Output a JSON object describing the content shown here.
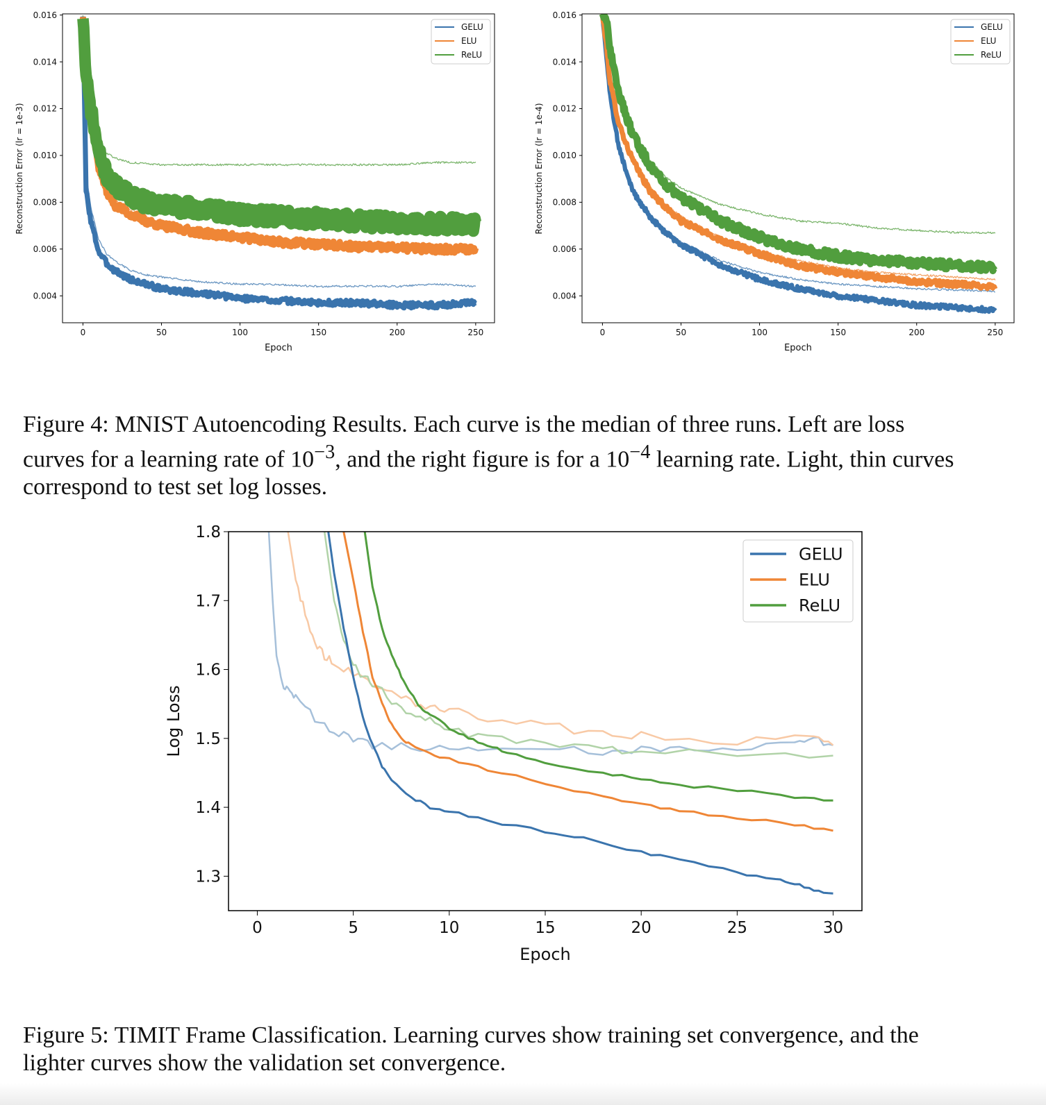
{
  "figure4": {
    "caption_prefix": "Figure 4:",
    "caption_line1": "MNIST Autoencoding Results.  Each curve is the median of three runs.  Left are loss",
    "caption_line2_pre": "curves for a learning rate of 10",
    "caption_line2_sup1": "−3",
    "caption_line2_mid": ", and the right figure is for a 10",
    "caption_line2_sup2": "−4",
    "caption_line2_post": " learning rate. Light, thin curves",
    "caption_line3": "correspond to test set log losses."
  },
  "figure5": {
    "caption_prefix": "Figure 5:",
    "caption_line1": "TIMIT Frame Classification.  Learning curves show training set convergence, and the",
    "caption_line2": "lighter curves show the validation set convergence."
  },
  "colors": {
    "GELU": "#3a74ad",
    "ELU": "#ef8636",
    "ReLU": "#519e3e"
  },
  "chart_data": [
    {
      "id": "mnist-lr-1e-3",
      "type": "line",
      "xlabel": "Epoch",
      "ylabel": "Reconstruction Error (lr = 1e-3)",
      "xlim": [
        -13,
        262
      ],
      "ylim": [
        0.00285,
        0.01605
      ],
      "xticks": [
        0,
        50,
        100,
        150,
        200,
        250
      ],
      "xtick_labels": [
        "0",
        "50",
        "100",
        "150",
        "200",
        "250"
      ],
      "yticks": [
        0.004,
        0.006,
        0.008,
        0.01,
        0.012,
        0.014,
        0.016
      ],
      "ytick_labels": [
        "0.004",
        "0.006",
        "0.008",
        "0.010",
        "0.012",
        "0.014",
        "0.016"
      ],
      "legend": [
        "GELU",
        "ELU",
        "ReLU"
      ],
      "legend_position": "top-right",
      "grid": false,
      "x": [
        0,
        2,
        5,
        10,
        15,
        20,
        30,
        40,
        50,
        75,
        100,
        125,
        150,
        175,
        200,
        225,
        250
      ],
      "series": [
        {
          "name": "GELU",
          "kind": "train",
          "noise": 0.00012,
          "values": [
            0.016,
            0.0085,
            0.0072,
            0.0059,
            0.0054,
            0.0051,
            0.0047,
            0.0045,
            0.0043,
            0.0041,
            0.0039,
            0.0038,
            0.0037,
            0.0037,
            0.0036,
            0.0036,
            0.0037
          ]
        },
        {
          "name": "GELU",
          "kind": "test",
          "values": [
            0.016,
            0.0092,
            0.0078,
            0.0064,
            0.0058,
            0.0055,
            0.0051,
            0.0049,
            0.0048,
            0.0046,
            0.0045,
            0.00448,
            0.0044,
            0.00442,
            0.0044,
            0.0045,
            0.0044
          ]
        },
        {
          "name": "ELU",
          "kind": "train",
          "noise": 0.00016,
          "values": [
            0.016,
            0.013,
            0.0115,
            0.0095,
            0.0085,
            0.0079,
            0.0075,
            0.0072,
            0.007,
            0.0067,
            0.0065,
            0.0063,
            0.0062,
            0.0061,
            0.00605,
            0.006,
            0.006
          ]
        },
        {
          "name": "ELU",
          "kind": "test",
          "values": [
            0.016,
            0.0132,
            0.0117,
            0.0097,
            0.0087,
            0.0081,
            0.0077,
            0.0074,
            0.0071,
            0.0068,
            0.0066,
            0.0064,
            0.0063,
            0.0062,
            0.0061,
            0.0061,
            0.006
          ]
        },
        {
          "name": "ReLU",
          "kind": "train",
          "noise": 0.00032,
          "values": [
            0.016,
            0.0133,
            0.012,
            0.0101,
            0.0092,
            0.0087,
            0.0083,
            0.008,
            0.0079,
            0.0077,
            0.0075,
            0.0074,
            0.0073,
            0.0072,
            0.0071,
            0.0071,
            0.007
          ]
        },
        {
          "name": "ReLU",
          "kind": "test",
          "values": [
            0.016,
            0.0135,
            0.012,
            0.0106,
            0.0101,
            0.0099,
            0.0097,
            0.00965,
            0.0096,
            0.0096,
            0.0096,
            0.0096,
            0.0096,
            0.0096,
            0.0096,
            0.0097,
            0.0097
          ]
        }
      ]
    },
    {
      "id": "mnist-lr-1e-4",
      "type": "line",
      "xlabel": "Epoch",
      "ylabel": "Reconstruction Error (lr = 1e-4)",
      "xlim": [
        -13,
        262
      ],
      "ylim": [
        0.00285,
        0.01605
      ],
      "xticks": [
        0,
        50,
        100,
        150,
        200,
        250
      ],
      "xtick_labels": [
        "0",
        "50",
        "100",
        "150",
        "200",
        "250"
      ],
      "yticks": [
        0.004,
        0.006,
        0.008,
        0.01,
        0.012,
        0.014,
        0.016
      ],
      "ytick_labels": [
        "0.004",
        "0.006",
        "0.008",
        "0.010",
        "0.012",
        "0.014",
        "0.016"
      ],
      "legend": [
        "GELU",
        "ELU",
        "ReLU"
      ],
      "legend_position": "top-right",
      "grid": false,
      "x": [
        0,
        2,
        5,
        10,
        15,
        20,
        30,
        40,
        50,
        75,
        100,
        125,
        150,
        175,
        200,
        225,
        250
      ],
      "series": [
        {
          "name": "GELU",
          "kind": "train",
          "noise": 0.0001,
          "values": [
            0.016,
            0.0145,
            0.0125,
            0.0105,
            0.0093,
            0.0084,
            0.0074,
            0.0067,
            0.0062,
            0.0053,
            0.0047,
            0.0043,
            0.004,
            0.0038,
            0.0036,
            0.0035,
            0.0034
          ]
        },
        {
          "name": "GELU",
          "kind": "test",
          "values": [
            0.016,
            0.0145,
            0.0126,
            0.0106,
            0.0094,
            0.0085,
            0.0075,
            0.0068,
            0.0063,
            0.0055,
            0.005,
            0.0047,
            0.0045,
            0.0044,
            0.0043,
            0.00425,
            0.0042
          ]
        },
        {
          "name": "ELU",
          "kind": "train",
          "noise": 0.00012,
          "values": [
            0.016,
            0.015,
            0.0131,
            0.0115,
            0.0105,
            0.0097,
            0.0085,
            0.0078,
            0.0072,
            0.0064,
            0.0058,
            0.0053,
            0.005,
            0.0048,
            0.0046,
            0.0045,
            0.0044
          ]
        },
        {
          "name": "ELU",
          "kind": "test",
          "values": [
            0.016,
            0.015,
            0.0132,
            0.0116,
            0.0106,
            0.0098,
            0.0087,
            0.0079,
            0.0074,
            0.0065,
            0.0059,
            0.0055,
            0.0052,
            0.005,
            0.0049,
            0.0048,
            0.0047
          ]
        },
        {
          "name": "ReLU",
          "kind": "train",
          "noise": 0.00018,
          "values": [
            0.016,
            0.016,
            0.0145,
            0.0128,
            0.0117,
            0.0108,
            0.0096,
            0.0088,
            0.0082,
            0.0072,
            0.0065,
            0.006,
            0.0057,
            0.0055,
            0.0054,
            0.0053,
            0.0052
          ]
        },
        {
          "name": "ReLU",
          "kind": "test",
          "values": [
            0.016,
            0.016,
            0.0146,
            0.013,
            0.0119,
            0.011,
            0.0098,
            0.0091,
            0.0086,
            0.0079,
            0.0075,
            0.0072,
            0.0071,
            0.0069,
            0.0068,
            0.0067,
            0.0067
          ]
        }
      ]
    },
    {
      "id": "timit",
      "type": "line",
      "xlabel": "Epoch",
      "ylabel": "Log Loss",
      "xlim": [
        -1.5,
        31.5
      ],
      "ylim": [
        1.25,
        1.8
      ],
      "xticks": [
        0,
        5,
        10,
        15,
        20,
        25,
        30
      ],
      "xtick_labels": [
        "0",
        "5",
        "10",
        "15",
        "20",
        "25",
        "30"
      ],
      "yticks": [
        1.3,
        1.4,
        1.5,
        1.6,
        1.7,
        1.8
      ],
      "ytick_labels": [
        "1.3",
        "1.4",
        "1.5",
        "1.6",
        "1.7",
        "1.8"
      ],
      "legend": [
        "GELU",
        "ELU",
        "ReLU"
      ],
      "legend_position": "top-right",
      "grid": false,
      "series": [
        {
          "name": "GELU",
          "kind": "train",
          "x": [
            3.7,
            4,
            4.5,
            5,
            5.5,
            6,
            6.5,
            7,
            8,
            9,
            10,
            12,
            15,
            17,
            20,
            22,
            25,
            27,
            28,
            29,
            30
          ],
          "y": [
            1.8,
            1.74,
            1.66,
            1.59,
            1.53,
            1.49,
            1.46,
            1.44,
            1.415,
            1.4,
            1.395,
            1.38,
            1.365,
            1.355,
            1.335,
            1.325,
            1.305,
            1.295,
            1.29,
            1.28,
            1.275
          ]
        },
        {
          "name": "GELU",
          "kind": "validation",
          "x": [
            0.6,
            0.8,
            1,
            1.3,
            1.6,
            2,
            3,
            4,
            5,
            6,
            8,
            10,
            12,
            15,
            18,
            20,
            22,
            25,
            28,
            29,
            30
          ],
          "y": [
            1.8,
            1.7,
            1.62,
            1.58,
            1.57,
            1.56,
            1.53,
            1.51,
            1.5,
            1.49,
            1.488,
            1.485,
            1.483,
            1.485,
            1.48,
            1.485,
            1.483,
            1.487,
            1.492,
            1.5,
            1.49
          ]
        },
        {
          "name": "ELU",
          "kind": "train",
          "x": [
            4.5,
            5,
            5.5,
            6,
            6.5,
            7,
            7.5,
            8,
            9,
            10,
            12,
            15,
            18,
            20,
            22,
            25,
            28,
            30
          ],
          "y": [
            1.8,
            1.73,
            1.655,
            1.59,
            1.55,
            1.52,
            1.5,
            1.49,
            1.478,
            1.47,
            1.455,
            1.435,
            1.415,
            1.405,
            1.395,
            1.385,
            1.375,
            1.366
          ]
        },
        {
          "name": "ELU",
          "kind": "validation",
          "x": [
            1.6,
            2,
            2.5,
            3,
            3.5,
            4,
            5,
            6,
            7,
            8,
            9,
            10,
            12,
            15,
            18,
            20,
            25,
            29,
            30
          ],
          "y": [
            1.8,
            1.73,
            1.68,
            1.64,
            1.62,
            1.61,
            1.595,
            1.58,
            1.57,
            1.555,
            1.545,
            1.54,
            1.53,
            1.52,
            1.505,
            1.505,
            1.495,
            1.505,
            1.49
          ]
        },
        {
          "name": "ReLU",
          "kind": "train",
          "x": [
            5.6,
            6,
            6.5,
            7,
            7.5,
            8,
            8.5,
            9,
            10,
            11,
            12,
            13,
            15,
            18,
            20,
            22,
            25,
            28,
            30
          ],
          "y": [
            1.8,
            1.72,
            1.66,
            1.62,
            1.59,
            1.565,
            1.545,
            1.535,
            1.515,
            1.5,
            1.49,
            1.48,
            1.465,
            1.45,
            1.44,
            1.432,
            1.425,
            1.415,
            1.41
          ]
        },
        {
          "name": "ReLU",
          "kind": "validation",
          "x": [
            3.5,
            4,
            4.5,
            5,
            5.5,
            6,
            7,
            8,
            9,
            10,
            12,
            15,
            18,
            20,
            25,
            30
          ],
          "y": [
            1.8,
            1.7,
            1.64,
            1.61,
            1.59,
            1.58,
            1.555,
            1.535,
            1.525,
            1.515,
            1.5,
            1.49,
            1.485,
            1.48,
            1.477,
            1.475
          ]
        }
      ]
    }
  ]
}
